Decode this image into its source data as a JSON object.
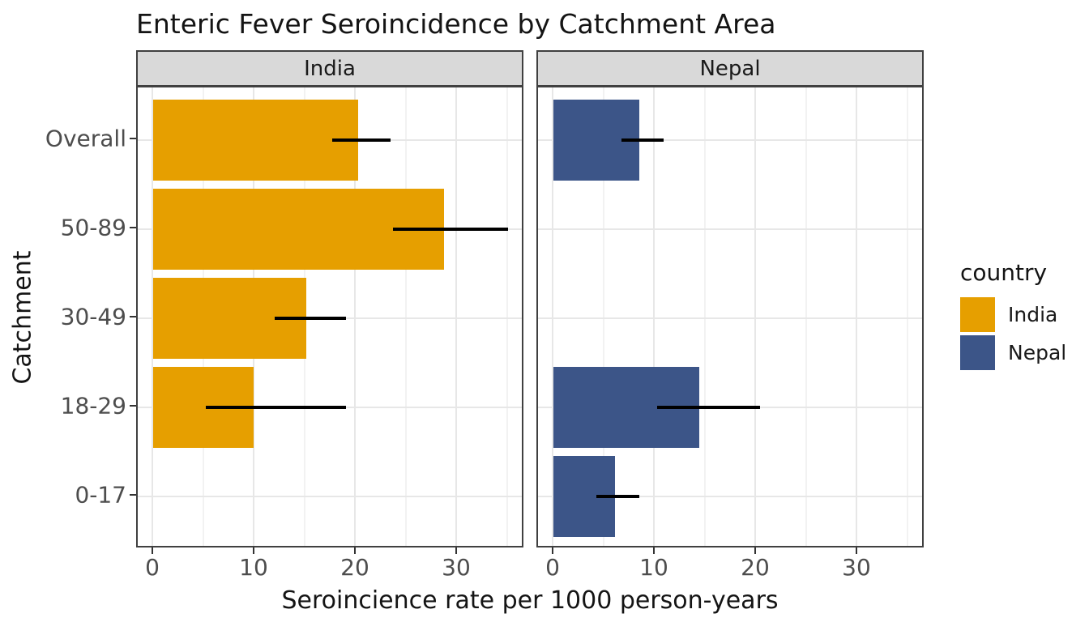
{
  "title": "Enteric Fever Seroincidence by Catchment Area",
  "chart_data": {
    "type": "bar",
    "orientation": "horizontal",
    "xlabel": "Seroincience rate per 1000 person-years",
    "ylabel": "Catchment",
    "categories": [
      "Overall",
      "50-89",
      "30-49",
      "18-29",
      "0-17"
    ],
    "x_ticks": [
      0,
      10,
      20,
      30
    ],
    "x_minor_gridlines": [
      5,
      15,
      25,
      35
    ],
    "xlim": [
      0,
      36.6
    ],
    "grid": true,
    "legend_position": "right",
    "facets": [
      {
        "label": "India",
        "color": "#E69F00",
        "series": [
          {
            "category": "Overall",
            "value": 20.2,
            "ci_low": 17.7,
            "ci_high": 23.4
          },
          {
            "category": "50-89",
            "value": 28.7,
            "ci_low": 23.7,
            "ci_high": 35.0
          },
          {
            "category": "30-49",
            "value": 15.1,
            "ci_low": 12.0,
            "ci_high": 19.0
          },
          {
            "category": "18-29",
            "value": 9.9,
            "ci_low": 5.2,
            "ci_high": 19.0
          },
          {
            "category": "0-17",
            "value": null,
            "ci_low": null,
            "ci_high": null
          }
        ]
      },
      {
        "label": "Nepal",
        "color": "#3C5588",
        "series": [
          {
            "category": "Overall",
            "value": 8.5,
            "ci_low": 6.7,
            "ci_high": 10.9
          },
          {
            "category": "50-89",
            "value": null,
            "ci_low": null,
            "ci_high": null
          },
          {
            "category": "30-49",
            "value": null,
            "ci_low": null,
            "ci_high": null
          },
          {
            "category": "18-29",
            "value": 14.4,
            "ci_low": 10.2,
            "ci_high": 20.4
          },
          {
            "category": "0-17",
            "value": 6.1,
            "ci_low": 4.2,
            "ci_high": 8.5
          }
        ]
      }
    ],
    "legend": {
      "title": "country",
      "items": [
        {
          "label": "India",
          "color": "#E69F00"
        },
        {
          "label": "Nepal",
          "color": "#3C5588"
        }
      ]
    },
    "style_colors": {
      "gridline_major": "#E7E7E7",
      "gridline_minor": "#F2F2F2",
      "strip_background": "#D9D9D9",
      "panel_border": "#404040",
      "errorbar": "#000000",
      "tick_text": "#4D4D4D"
    }
  }
}
